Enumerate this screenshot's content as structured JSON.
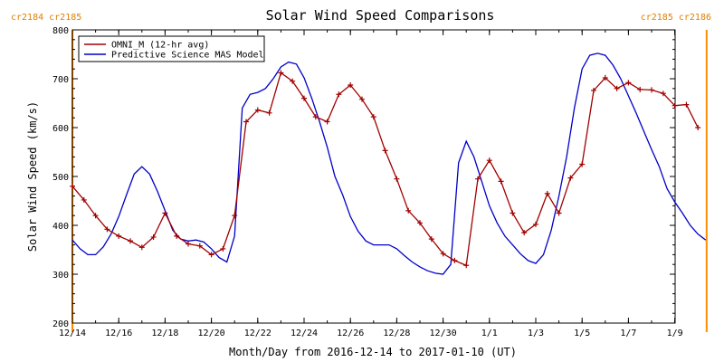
{
  "chart_data": {
    "type": "line",
    "title": "Solar Wind Speed Comparisons",
    "xlabel": "Month/Day from 2016-12-14 to 2017-01-10 (UT)",
    "ylabel": "Solar Wind Speed (km/s)",
    "ylim": [
      200,
      800
    ],
    "xlim": [
      "2016-12-14",
      "2017-01-10"
    ],
    "y_ticks": [
      200,
      300,
      400,
      500,
      600,
      700,
      800
    ],
    "x_ticks": [
      {
        "date": "2016-12-14",
        "label": "12/14"
      },
      {
        "date": "2016-12-16",
        "label": "12/16"
      },
      {
        "date": "2016-12-18",
        "label": "12/18"
      },
      {
        "date": "2016-12-20",
        "label": "12/20"
      },
      {
        "date": "2016-12-22",
        "label": "12/22"
      },
      {
        "date": "2016-12-24",
        "label": "12/24"
      },
      {
        "date": "2016-12-26",
        "label": "12/26"
      },
      {
        "date": "2016-12-28",
        "label": "12/28"
      },
      {
        "date": "2016-12-30",
        "label": "12/30"
      },
      {
        "date": "2017-01-01",
        "label": "1/1"
      },
      {
        "date": "2017-01-03",
        "label": "1/3"
      },
      {
        "date": "2017-01-05",
        "label": "1/5"
      },
      {
        "date": "2017-01-07",
        "label": "1/7"
      },
      {
        "date": "2017-01-09",
        "label": "1/9"
      }
    ],
    "carrington_left": "cr2184 cr2185",
    "carrington_right": "cr2185 cr2186",
    "carrington_boundaries": [
      "2016-12-14 00:00",
      "2017-01-10 09:00"
    ],
    "legend_position": "top-left",
    "series": [
      {
        "name": "OMNI_M (12-hr avg)",
        "color": "#a00000",
        "marker": "plus",
        "x": [
          "2016-12-14 00:00",
          "2016-12-14 12:00",
          "2016-12-15 00:00",
          "2016-12-15 12:00",
          "2016-12-16 00:00",
          "2016-12-16 12:00",
          "2016-12-17 00:00",
          "2016-12-17 12:00",
          "2016-12-18 00:00",
          "2016-12-18 12:00",
          "2016-12-19 00:00",
          "2016-12-19 12:00",
          "2016-12-20 00:00",
          "2016-12-20 12:00",
          "2016-12-21 00:00",
          "2016-12-21 12:00",
          "2016-12-22 00:00",
          "2016-12-22 12:00",
          "2016-12-23 00:00",
          "2016-12-23 12:00",
          "2016-12-24 00:00",
          "2016-12-24 12:00",
          "2016-12-25 00:00",
          "2016-12-25 12:00",
          "2016-12-26 00:00",
          "2016-12-26 12:00",
          "2016-12-27 00:00",
          "2016-12-27 12:00",
          "2016-12-28 00:00",
          "2016-12-28 12:00",
          "2016-12-29 00:00",
          "2016-12-29 12:00",
          "2016-12-30 00:00",
          "2016-12-30 12:00",
          "2016-12-31 00:00",
          "2016-12-31 12:00",
          "2017-01-01 00:00",
          "2017-01-01 12:00",
          "2017-01-02 00:00",
          "2017-01-02 12:00",
          "2017-01-03 00:00",
          "2017-01-03 12:00",
          "2017-01-04 00:00",
          "2017-01-04 12:00",
          "2017-01-05 00:00",
          "2017-01-05 12:00",
          "2017-01-06 00:00",
          "2017-01-06 12:00",
          "2017-01-07 00:00",
          "2017-01-07 12:00",
          "2017-01-08 00:00",
          "2017-01-08 12:00",
          "2017-01-09 00:00",
          "2017-01-09 12:00",
          "2017-01-10 00:00"
        ],
        "y": [
          480,
          452,
          420,
          392,
          378,
          368,
          355,
          376,
          425,
          378,
          362,
          358,
          340,
          352,
          420,
          612,
          636,
          630,
          712,
          695,
          660,
          622,
          612,
          668,
          687,
          658,
          622,
          553,
          495,
          430,
          405,
          372,
          342,
          328,
          318,
          495,
          533,
          490,
          425,
          385,
          402,
          465,
          425,
          497,
          525,
          676,
          702,
          680,
          692,
          678,
          677,
          670,
          645,
          647,
          600
        ]
      },
      {
        "name": "Predictive Science MAS Model",
        "color": "#0000c8",
        "x": [
          "2016-12-14 00:00",
          "2016-12-14 08:00",
          "2016-12-14 16:00",
          "2016-12-15 00:00",
          "2016-12-15 08:00",
          "2016-12-15 16:00",
          "2016-12-16 00:00",
          "2016-12-16 08:00",
          "2016-12-16 16:00",
          "2016-12-17 00:00",
          "2016-12-17 08:00",
          "2016-12-17 16:00",
          "2016-12-18 00:00",
          "2016-12-18 08:00",
          "2016-12-18 16:00",
          "2016-12-19 00:00",
          "2016-12-19 08:00",
          "2016-12-19 16:00",
          "2016-12-20 00:00",
          "2016-12-20 08:00",
          "2016-12-20 16:00",
          "2016-12-21 00:00",
          "2016-12-21 08:00",
          "2016-12-21 16:00",
          "2016-12-22 00:00",
          "2016-12-22 08:00",
          "2016-12-22 16:00",
          "2016-12-23 00:00",
          "2016-12-23 08:00",
          "2016-12-23 16:00",
          "2016-12-24 00:00",
          "2016-12-24 08:00",
          "2016-12-24 16:00",
          "2016-12-25 00:00",
          "2016-12-25 08:00",
          "2016-12-25 16:00",
          "2016-12-26 00:00",
          "2016-12-26 08:00",
          "2016-12-26 16:00",
          "2016-12-27 00:00",
          "2016-12-27 08:00",
          "2016-12-27 16:00",
          "2016-12-28 00:00",
          "2016-12-28 08:00",
          "2016-12-28 16:00",
          "2016-12-29 00:00",
          "2016-12-29 08:00",
          "2016-12-29 16:00",
          "2016-12-30 00:00",
          "2016-12-30 08:00",
          "2016-12-30 16:00",
          "2016-12-31 00:00",
          "2016-12-31 08:00",
          "2016-12-31 16:00",
          "2017-01-01 00:00",
          "2017-01-01 08:00",
          "2017-01-01 16:00",
          "2017-01-02 00:00",
          "2017-01-02 08:00",
          "2017-01-02 16:00",
          "2017-01-03 00:00",
          "2017-01-03 08:00",
          "2017-01-03 16:00",
          "2017-01-04 00:00",
          "2017-01-04 08:00",
          "2017-01-04 16:00",
          "2017-01-05 00:00",
          "2017-01-05 08:00",
          "2017-01-05 16:00",
          "2017-01-06 00:00",
          "2017-01-06 08:00",
          "2017-01-06 16:00",
          "2017-01-07 00:00",
          "2017-01-07 08:00",
          "2017-01-07 16:00",
          "2017-01-08 00:00",
          "2017-01-08 08:00",
          "2017-01-08 16:00",
          "2017-01-09 00:00",
          "2017-01-09 08:00",
          "2017-01-09 16:00",
          "2017-01-10 00:00",
          "2017-01-10 08:00"
        ],
        "y": [
          370,
          352,
          340,
          340,
          356,
          382,
          418,
          462,
          505,
          520,
          505,
          470,
          430,
          390,
          372,
          368,
          370,
          366,
          352,
          334,
          325,
          378,
          640,
          668,
          672,
          680,
          700,
          724,
          734,
          730,
          702,
          660,
          612,
          560,
          500,
          462,
          418,
          388,
          368,
          360,
          360,
          360,
          352,
          338,
          325,
          315,
          307,
          302,
          300,
          320,
          528,
          572,
          540,
          490,
          440,
          405,
          378,
          360,
          342,
          328,
          322,
          340,
          390,
          460,
          540,
          640,
          720,
          748,
          752,
          748,
          728,
          700,
          665,
          630,
          592,
          555,
          520,
          475,
          448,
          425,
          400,
          382,
          370
        ]
      }
    ]
  }
}
